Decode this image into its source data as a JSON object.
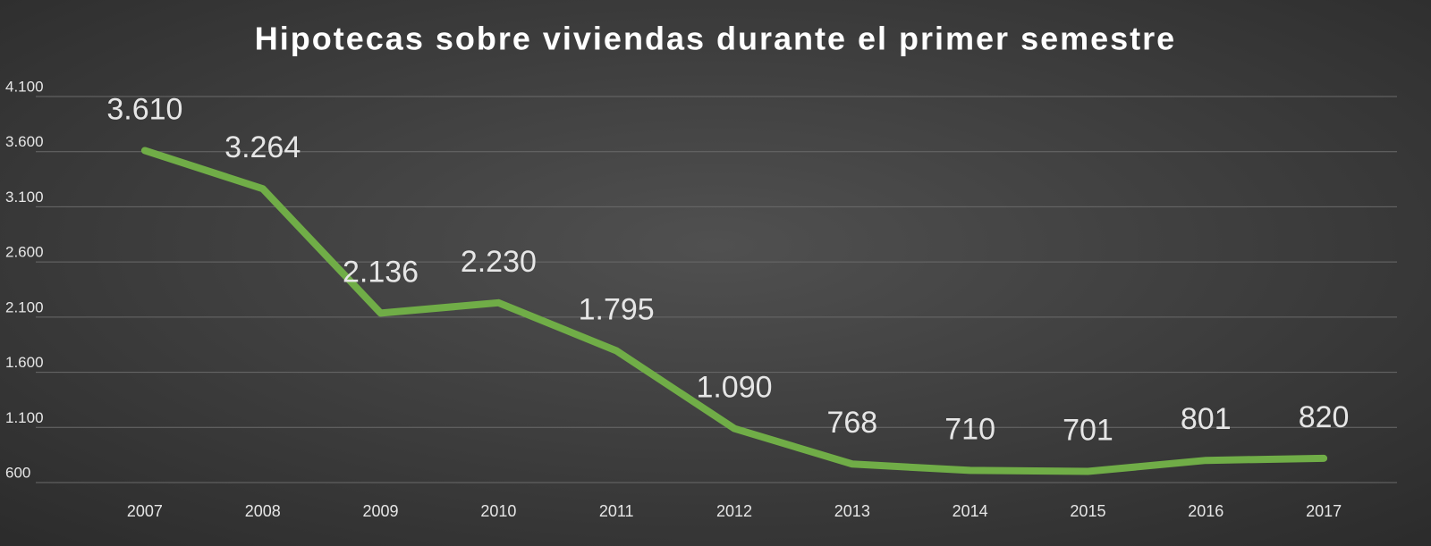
{
  "chart_data": {
    "type": "line",
    "title": "Hipotecas sobre viviendas durante el primer semestre",
    "categories": [
      "2007",
      "2008",
      "2009",
      "2010",
      "2011",
      "2012",
      "2013",
      "2014",
      "2015",
      "2016",
      "2017"
    ],
    "values": [
      3610,
      3264,
      2136,
      2230,
      1795,
      1090,
      768,
      710,
      701,
      801,
      820
    ],
    "value_labels": [
      "3.610",
      "3.264",
      "2.136",
      "2.230",
      "1.795",
      "1.090",
      "768",
      "710",
      "701",
      "801",
      "820"
    ],
    "color": "#70ad47",
    "ylim": [
      600,
      4100
    ],
    "yticks": [
      600,
      {
        "value": 1100,
        "label": "1.100"
      },
      {
        "value": 1600,
        "label": "1.600"
      },
      {
        "value": 2100,
        "label": "2.100"
      },
      {
        "value": 2600,
        "label": "2.600"
      },
      {
        "value": 3100,
        "label": "3.100"
      },
      {
        "value": 3600,
        "label": "3.600"
      },
      {
        "value": 4100,
        "label": "4.100"
      }
    ],
    "grid": true
  }
}
